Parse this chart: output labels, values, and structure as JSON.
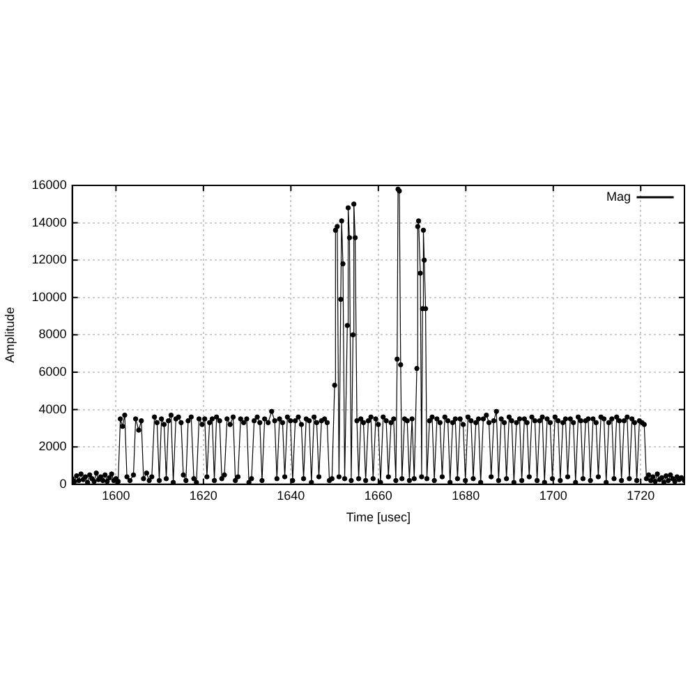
{
  "chart_data": {
    "type": "line",
    "xlabel": "Time [usec]",
    "ylabel": "Amplitude",
    "x": [
      1590,
      1590.5,
      1591,
      1591.5,
      1592,
      1592.5,
      1593,
      1593.5,
      1594,
      1594.5,
      1595,
      1595.5,
      1596,
      1596.5,
      1597,
      1597.5,
      1598,
      1598.5,
      1599,
      1599.5,
      1600,
      1600.5,
      1601,
      1601.5,
      1602,
      1602.5,
      1603.2,
      1604,
      1604.5,
      1605.2,
      1605.8,
      1606.3,
      1607,
      1607.6,
      1608.2,
      1608.8,
      1609.4,
      1609.9,
      1610.4,
      1611,
      1611.5,
      1612,
      1612.6,
      1613.1,
      1613.7,
      1614.3,
      1614.9,
      1615.4,
      1616,
      1616.5,
      1617.2,
      1617.8,
      1618.4,
      1619,
      1619.7,
      1620.3,
      1620.8,
      1621.4,
      1622,
      1622.5,
      1623,
      1623.7,
      1624.2,
      1624.8,
      1625.4,
      1626.1,
      1626.8,
      1627.3,
      1627.9,
      1628.5,
      1629.2,
      1629.9,
      1630.4,
      1631,
      1631.6,
      1632.3,
      1632.9,
      1633.4,
      1634,
      1634.8,
      1635.6,
      1636.3,
      1636.8,
      1637.4,
      1638.1,
      1638.6,
      1639.2,
      1639.9,
      1640.4,
      1641,
      1641.7,
      1642.4,
      1642.9,
      1643.5,
      1644.2,
      1644.7,
      1645.3,
      1645.9,
      1646.4,
      1647,
      1647.7,
      1648.3,
      1648.8,
      1649.4,
      1650,
      1650.2,
      1650.6,
      1651,
      1651.4,
      1651.6,
      1651.9,
      1652.3,
      1652.9,
      1653.1,
      1653.4,
      1653.8,
      1654.2,
      1654.4,
      1654.7,
      1655.1,
      1655.5,
      1656,
      1656.6,
      1657.1,
      1657.7,
      1658.3,
      1658.8,
      1659.4,
      1660,
      1660.5,
      1661.1,
      1661.8,
      1662.3,
      1662.9,
      1663.5,
      1664,
      1664.3,
      1664.5,
      1664.8,
      1665.1,
      1665.4,
      1666,
      1666.6,
      1667.1,
      1667.7,
      1668.2,
      1668.8,
      1669,
      1669.2,
      1669.6,
      1669.9,
      1670.1,
      1670.3,
      1670.5,
      1670.8,
      1671.1,
      1671.7,
      1672.3,
      1672.8,
      1673.4,
      1674.1,
      1674.6,
      1675.2,
      1675.9,
      1676.4,
      1677,
      1677.6,
      1678.1,
      1678.7,
      1679.4,
      1679.9,
      1680.5,
      1681.2,
      1681.7,
      1682.3,
      1682.9,
      1683.4,
      1684,
      1684.7,
      1685.3,
      1685.8,
      1686.4,
      1687,
      1687.5,
      1688.1,
      1688.8,
      1689.3,
      1689.9,
      1690.5,
      1691,
      1691.6,
      1692.3,
      1692.8,
      1693.4,
      1694,
      1694.5,
      1695.1,
      1695.8,
      1696.3,
      1696.9,
      1697.5,
      1698,
      1698.6,
      1699.3,
      1699.8,
      1700.4,
      1701.1,
      1701.6,
      1702.2,
      1702.8,
      1703.3,
      1703.9,
      1704.6,
      1705.1,
      1705.7,
      1706.3,
      1706.8,
      1707.4,
      1708,
      1708.5,
      1709.1,
      1709.8,
      1710.3,
      1710.9,
      1711.6,
      1712.1,
      1712.7,
      1713.4,
      1713.9,
      1714.5,
      1715.1,
      1715.6,
      1716.2,
      1716.9,
      1717.4,
      1718,
      1718.6,
      1719.1,
      1719.7,
      1720.3,
      1720.8,
      1721.3,
      1721.8,
      1722.3,
      1722.8,
      1723.3,
      1723.8,
      1724.3,
      1724.8,
      1725.3,
      1725.8,
      1726.3,
      1726.8,
      1727.3,
      1727.8,
      1728.3,
      1728.8,
      1729.3,
      1730
    ],
    "series": [
      {
        "name": "Mag",
        "color": "#000000",
        "values": [
          300,
          150,
          450,
          200,
          550,
          250,
          400,
          100,
          500,
          300,
          150,
          600,
          250,
          400,
          200,
          500,
          150,
          350,
          550,
          200,
          300,
          150,
          3500,
          3100,
          3700,
          400,
          200,
          500,
          3500,
          2900,
          3400,
          300,
          600,
          200,
          400,
          3600,
          3300,
          200,
          3500,
          3200,
          300,
          3400,
          3700,
          100,
          3500,
          3600,
          3300,
          500,
          200,
          3400,
          3600,
          300,
          100,
          3500,
          3200,
          3500,
          400,
          3300,
          3500,
          200,
          3600,
          3400,
          300,
          500,
          3500,
          3200,
          3600,
          200,
          400,
          3500,
          3300,
          3500,
          100,
          300,
          3400,
          3600,
          3300,
          200,
          3500,
          3300,
          3900,
          3400,
          300,
          3500,
          3300,
          400,
          3600,
          3400,
          200,
          3400,
          3600,
          3200,
          300,
          3500,
          3400,
          100,
          3600,
          3300,
          400,
          3400,
          3500,
          3300,
          200,
          300,
          5300,
          13600,
          13800,
          400,
          9900,
          14100,
          11800,
          300,
          8500,
          14800,
          13200,
          200,
          8000,
          15000,
          13200,
          3400,
          300,
          3500,
          3300,
          200,
          3400,
          3600,
          300,
          3500,
          3200,
          100,
          3600,
          3400,
          400,
          3300,
          3500,
          200,
          6700,
          15800,
          15700,
          6400,
          300,
          3500,
          3400,
          200,
          3500,
          300,
          6200,
          13800,
          14100,
          11300,
          400,
          9400,
          13600,
          12000,
          9400,
          300,
          3400,
          3600,
          200,
          3500,
          3300,
          400,
          3600,
          3400,
          100,
          3300,
          3500,
          300,
          3500,
          3200,
          200,
          3600,
          3400,
          300,
          3300,
          3500,
          100,
          3500,
          3700,
          3300,
          400,
          3400,
          3900,
          200,
          3500,
          3300,
          300,
          3600,
          3400,
          100,
          3300,
          3500,
          200,
          3500,
          3300,
          400,
          3600,
          3400,
          200,
          3400,
          3600,
          100,
          3500,
          3300,
          300,
          3600,
          3400,
          200,
          3300,
          3500,
          400,
          3500,
          3300,
          100,
          3600,
          3400,
          300,
          3400,
          3500,
          200,
          3500,
          3300,
          400,
          3600,
          3500,
          100,
          3300,
          3500,
          300,
          3600,
          3400,
          200,
          3400,
          3600,
          300,
          3500,
          3300,
          200,
          3400,
          3300,
          3200,
          300,
          500,
          200,
          400,
          150,
          550,
          250,
          350,
          100,
          450,
          200,
          500,
          300,
          150,
          400,
          250,
          350,
          200
        ]
      }
    ],
    "xlim": [
      1590,
      1730
    ],
    "xticks": [
      1600,
      1620,
      1640,
      1660,
      1680,
      1700,
      1720
    ],
    "ylim": [
      0,
      16000
    ],
    "yticks": [
      0,
      2000,
      4000,
      6000,
      8000,
      10000,
      12000,
      14000,
      16000
    ],
    "grid": true,
    "legend": "top right",
    "marker": "circle",
    "line_style": "solid"
  }
}
